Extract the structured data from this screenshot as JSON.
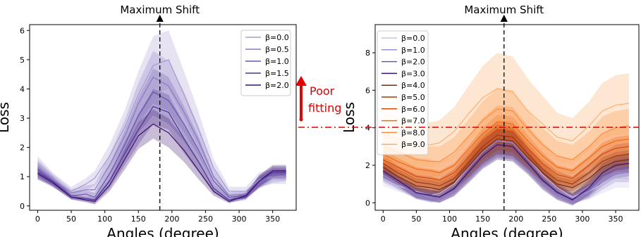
{
  "annotation": {
    "line1": "Poor",
    "line2": "fitting",
    "color": "#e00000"
  },
  "chart_data": [
    {
      "type": "line",
      "title": "Maximum Shift",
      "xlabel": "Angles (degree)",
      "ylabel": "Loss",
      "xlim": [
        -12,
        385
      ],
      "ylim": [
        -0.15,
        6.2
      ],
      "xticks": [
        0,
        50,
        100,
        150,
        200,
        250,
        300,
        350
      ],
      "yticks": [
        0,
        1,
        2,
        3,
        4,
        5,
        6
      ],
      "vline_x": 182,
      "legend_position": "upper right",
      "x": [
        0,
        22,
        50,
        72,
        85,
        107,
        130,
        150,
        172,
        195,
        218,
        240,
        262,
        285,
        310,
        330,
        350,
        370
      ],
      "series": [
        {
          "name": "β=0.0",
          "color": "#a89ad2",
          "values": [
            1.4,
            0.95,
            0.5,
            0.75,
            0.95,
            1.7,
            2.7,
            3.8,
            4.8,
            5.0,
            3.8,
            2.6,
            1.3,
            0.5,
            0.5,
            0.9,
            1.0,
            1.0
          ],
          "band": [
            0.3,
            0.2,
            0.15,
            0.2,
            0.25,
            0.4,
            0.6,
            0.8,
            1.0,
            1.0,
            0.8,
            0.6,
            0.3,
            0.15,
            0.15,
            0.25,
            0.25,
            0.25
          ]
        },
        {
          "name": "β=0.5",
          "color": "#8b79c2",
          "values": [
            1.3,
            0.9,
            0.45,
            0.55,
            0.55,
            1.4,
            2.4,
            3.5,
            4.4,
            4.1,
            3.2,
            2.2,
            1.0,
            0.35,
            0.4,
            0.8,
            1.0,
            1.05
          ],
          "band": [
            0.28,
            0.2,
            0.12,
            0.15,
            0.2,
            0.35,
            0.55,
            0.7,
            0.9,
            0.85,
            0.7,
            0.5,
            0.25,
            0.12,
            0.12,
            0.2,
            0.2,
            0.2
          ]
        },
        {
          "name": "β=1.0",
          "color": "#6c55b0",
          "values": [
            1.25,
            0.85,
            0.35,
            0.4,
            0.3,
            1.1,
            2.1,
            3.1,
            3.9,
            3.6,
            2.8,
            1.9,
            0.85,
            0.3,
            0.35,
            0.8,
            1.1,
            1.1
          ],
          "band": [
            0.25,
            0.18,
            0.1,
            0.12,
            0.15,
            0.3,
            0.5,
            0.6,
            0.8,
            0.8,
            0.6,
            0.45,
            0.2,
            0.1,
            0.1,
            0.2,
            0.2,
            0.2
          ]
        },
        {
          "name": "β=1.5",
          "color": "#4f3597",
          "values": [
            1.15,
            0.85,
            0.3,
            0.25,
            0.2,
            0.85,
            1.8,
            2.6,
            3.4,
            3.2,
            2.3,
            1.5,
            0.6,
            0.2,
            0.3,
            0.85,
            1.15,
            1.15
          ],
          "band": [
            0.22,
            0.15,
            0.08,
            0.1,
            0.12,
            0.25,
            0.4,
            0.5,
            0.6,
            0.6,
            0.5,
            0.35,
            0.15,
            0.08,
            0.1,
            0.2,
            0.2,
            0.2
          ]
        },
        {
          "name": "β=2.0",
          "color": "#3b0f70",
          "values": [
            1.1,
            0.8,
            0.3,
            0.2,
            0.15,
            0.7,
            1.6,
            2.4,
            2.8,
            2.5,
            1.9,
            1.2,
            0.5,
            0.15,
            0.35,
            0.85,
            1.2,
            1.2
          ],
          "band": [
            0.2,
            0.15,
            0.08,
            0.08,
            0.1,
            0.2,
            0.35,
            0.45,
            0.5,
            0.5,
            0.4,
            0.3,
            0.15,
            0.06,
            0.1,
            0.2,
            0.2,
            0.2
          ]
        }
      ]
    },
    {
      "type": "line",
      "title": "Maximum Shift",
      "xlabel": "Angles (degree)",
      "ylabel": "Loss",
      "xlim": [
        -12,
        385
      ],
      "ylim": [
        -0.4,
        9.5
      ],
      "xticks": [
        0,
        50,
        100,
        150,
        200,
        250,
        300,
        350
      ],
      "yticks": [
        0,
        2,
        4,
        6,
        8
      ],
      "vline_x": 182,
      "hline_y": 4.2,
      "legend_position": "upper left",
      "x": [
        0,
        22,
        50,
        72,
        85,
        107,
        130,
        150,
        172,
        195,
        218,
        240,
        262,
        285,
        310,
        330,
        350,
        370
      ],
      "series": [
        {
          "name": "β=0.0",
          "color": "#c9c3e6",
          "values": [
            1.3,
            0.9,
            0.6,
            0.4,
            0.5,
            1.0,
            2.0,
            2.8,
            3.4,
            3.3,
            2.4,
            1.5,
            0.8,
            0.3,
            0.6,
            1.0,
            1.3,
            1.3
          ],
          "band": [
            0.4,
            0.3,
            0.3,
            0.3,
            0.3,
            0.4,
            0.6,
            0.7,
            0.8,
            0.8,
            0.6,
            0.5,
            0.4,
            0.3,
            0.4,
            0.5,
            0.5,
            0.5
          ]
        },
        {
          "name": "β=1.0",
          "color": "#9b8fcb",
          "values": [
            1.5,
            1.0,
            0.5,
            0.3,
            0.4,
            0.9,
            1.9,
            2.7,
            3.3,
            3.2,
            2.3,
            1.4,
            0.7,
            0.25,
            0.6,
            1.2,
            1.6,
            1.6
          ],
          "band": [
            0.4,
            0.3,
            0.3,
            0.3,
            0.3,
            0.4,
            0.6,
            0.7,
            0.8,
            0.8,
            0.6,
            0.5,
            0.4,
            0.3,
            0.4,
            0.5,
            0.5,
            0.5
          ]
        },
        {
          "name": "β=2.0",
          "color": "#6c55b0",
          "values": [
            1.6,
            1.1,
            0.5,
            0.35,
            0.3,
            0.8,
            1.8,
            2.6,
            3.2,
            3.1,
            2.2,
            1.3,
            0.6,
            0.2,
            0.7,
            1.4,
            1.8,
            1.9
          ],
          "band": [
            0.4,
            0.3,
            0.3,
            0.3,
            0.3,
            0.4,
            0.6,
            0.7,
            0.8,
            0.8,
            0.6,
            0.5,
            0.4,
            0.3,
            0.4,
            0.5,
            0.5,
            0.5
          ]
        },
        {
          "name": "β=3.0",
          "color": "#3b0f70",
          "values": [
            1.7,
            1.2,
            0.55,
            0.4,
            0.3,
            0.75,
            1.7,
            2.5,
            3.1,
            3.0,
            2.1,
            1.2,
            0.55,
            0.15,
            0.8,
            1.6,
            2.0,
            2.1
          ],
          "band": [
            0.4,
            0.3,
            0.3,
            0.3,
            0.3,
            0.4,
            0.6,
            0.7,
            0.8,
            0.8,
            0.6,
            0.5,
            0.4,
            0.3,
            0.4,
            0.5,
            0.5,
            0.5
          ]
        },
        {
          "name": "β=4.0",
          "color": "#7f2704",
          "values": [
            1.9,
            1.4,
            0.9,
            0.8,
            0.7,
            1.1,
            2.0,
            2.8,
            3.4,
            3.3,
            2.4,
            1.6,
            1.0,
            0.8,
            1.3,
            1.9,
            2.2,
            2.3
          ],
          "band": [
            0.4,
            0.4,
            0.4,
            0.4,
            0.4,
            0.4,
            0.6,
            0.7,
            0.8,
            0.8,
            0.6,
            0.5,
            0.4,
            0.4,
            0.4,
            0.5,
            0.5,
            0.5
          ]
        },
        {
          "name": "β=5.0",
          "color": "#a63603",
          "values": [
            2.1,
            1.6,
            1.1,
            1.0,
            0.9,
            1.3,
            2.2,
            3.0,
            3.6,
            3.5,
            2.6,
            1.8,
            1.2,
            1.0,
            1.6,
            2.2,
            2.5,
            2.6
          ],
          "band": [
            0.5,
            0.4,
            0.4,
            0.4,
            0.4,
            0.5,
            0.6,
            0.7,
            0.8,
            0.8,
            0.6,
            0.5,
            0.5,
            0.4,
            0.5,
            0.5,
            0.6,
            0.6
          ]
        },
        {
          "name": "β=6.0",
          "color": "#d94801",
          "values": [
            2.3,
            1.9,
            1.4,
            1.3,
            1.2,
            1.6,
            2.5,
            3.3,
            3.9,
            3.8,
            2.9,
            2.1,
            1.5,
            1.3,
            2.0,
            2.6,
            2.9,
            3.0
          ],
          "band": [
            0.5,
            0.5,
            0.5,
            0.5,
            0.5,
            0.5,
            0.6,
            0.7,
            0.8,
            0.8,
            0.7,
            0.6,
            0.5,
            0.5,
            0.5,
            0.6,
            0.6,
            0.6
          ]
        },
        {
          "name": "β=7.0",
          "color": "#f16913",
          "values": [
            2.6,
            2.2,
            1.8,
            1.7,
            1.6,
            2.0,
            2.9,
            3.7,
            4.3,
            4.2,
            3.3,
            2.5,
            1.9,
            1.7,
            2.4,
            3.0,
            3.3,
            3.4
          ],
          "band": [
            0.6,
            0.6,
            0.6,
            0.6,
            0.6,
            0.6,
            0.7,
            0.8,
            0.9,
            0.9,
            0.8,
            0.7,
            0.6,
            0.6,
            0.6,
            0.7,
            0.7,
            0.7
          ]
        },
        {
          "name": "β=8.0",
          "color": "#fd8d3c",
          "values": [
            3.0,
            2.7,
            2.3,
            2.2,
            2.2,
            2.7,
            3.6,
            4.4,
            5.0,
            4.9,
            3.9,
            3.1,
            2.5,
            2.3,
            3.0,
            3.7,
            4.0,
            4.1
          ],
          "band": [
            0.8,
            0.8,
            0.8,
            0.8,
            0.8,
            0.8,
            0.9,
            1.0,
            1.1,
            1.1,
            1.0,
            0.9,
            0.8,
            0.8,
            0.8,
            0.9,
            0.9,
            0.9
          ]
        },
        {
          "name": "β=9.0",
          "color": "#fdae6b",
          "values": [
            3.6,
            3.4,
            3.1,
            3.1,
            3.2,
            3.8,
            4.8,
            5.6,
            6.1,
            5.9,
            4.9,
            4.2,
            3.5,
            3.3,
            4.1,
            4.9,
            5.2,
            5.3
          ],
          "band": [
            1.2,
            1.2,
            1.2,
            1.2,
            1.2,
            1.3,
            1.5,
            1.7,
            1.9,
            1.9,
            1.7,
            1.5,
            1.3,
            1.2,
            1.3,
            1.5,
            1.6,
            1.6
          ]
        }
      ]
    }
  ]
}
